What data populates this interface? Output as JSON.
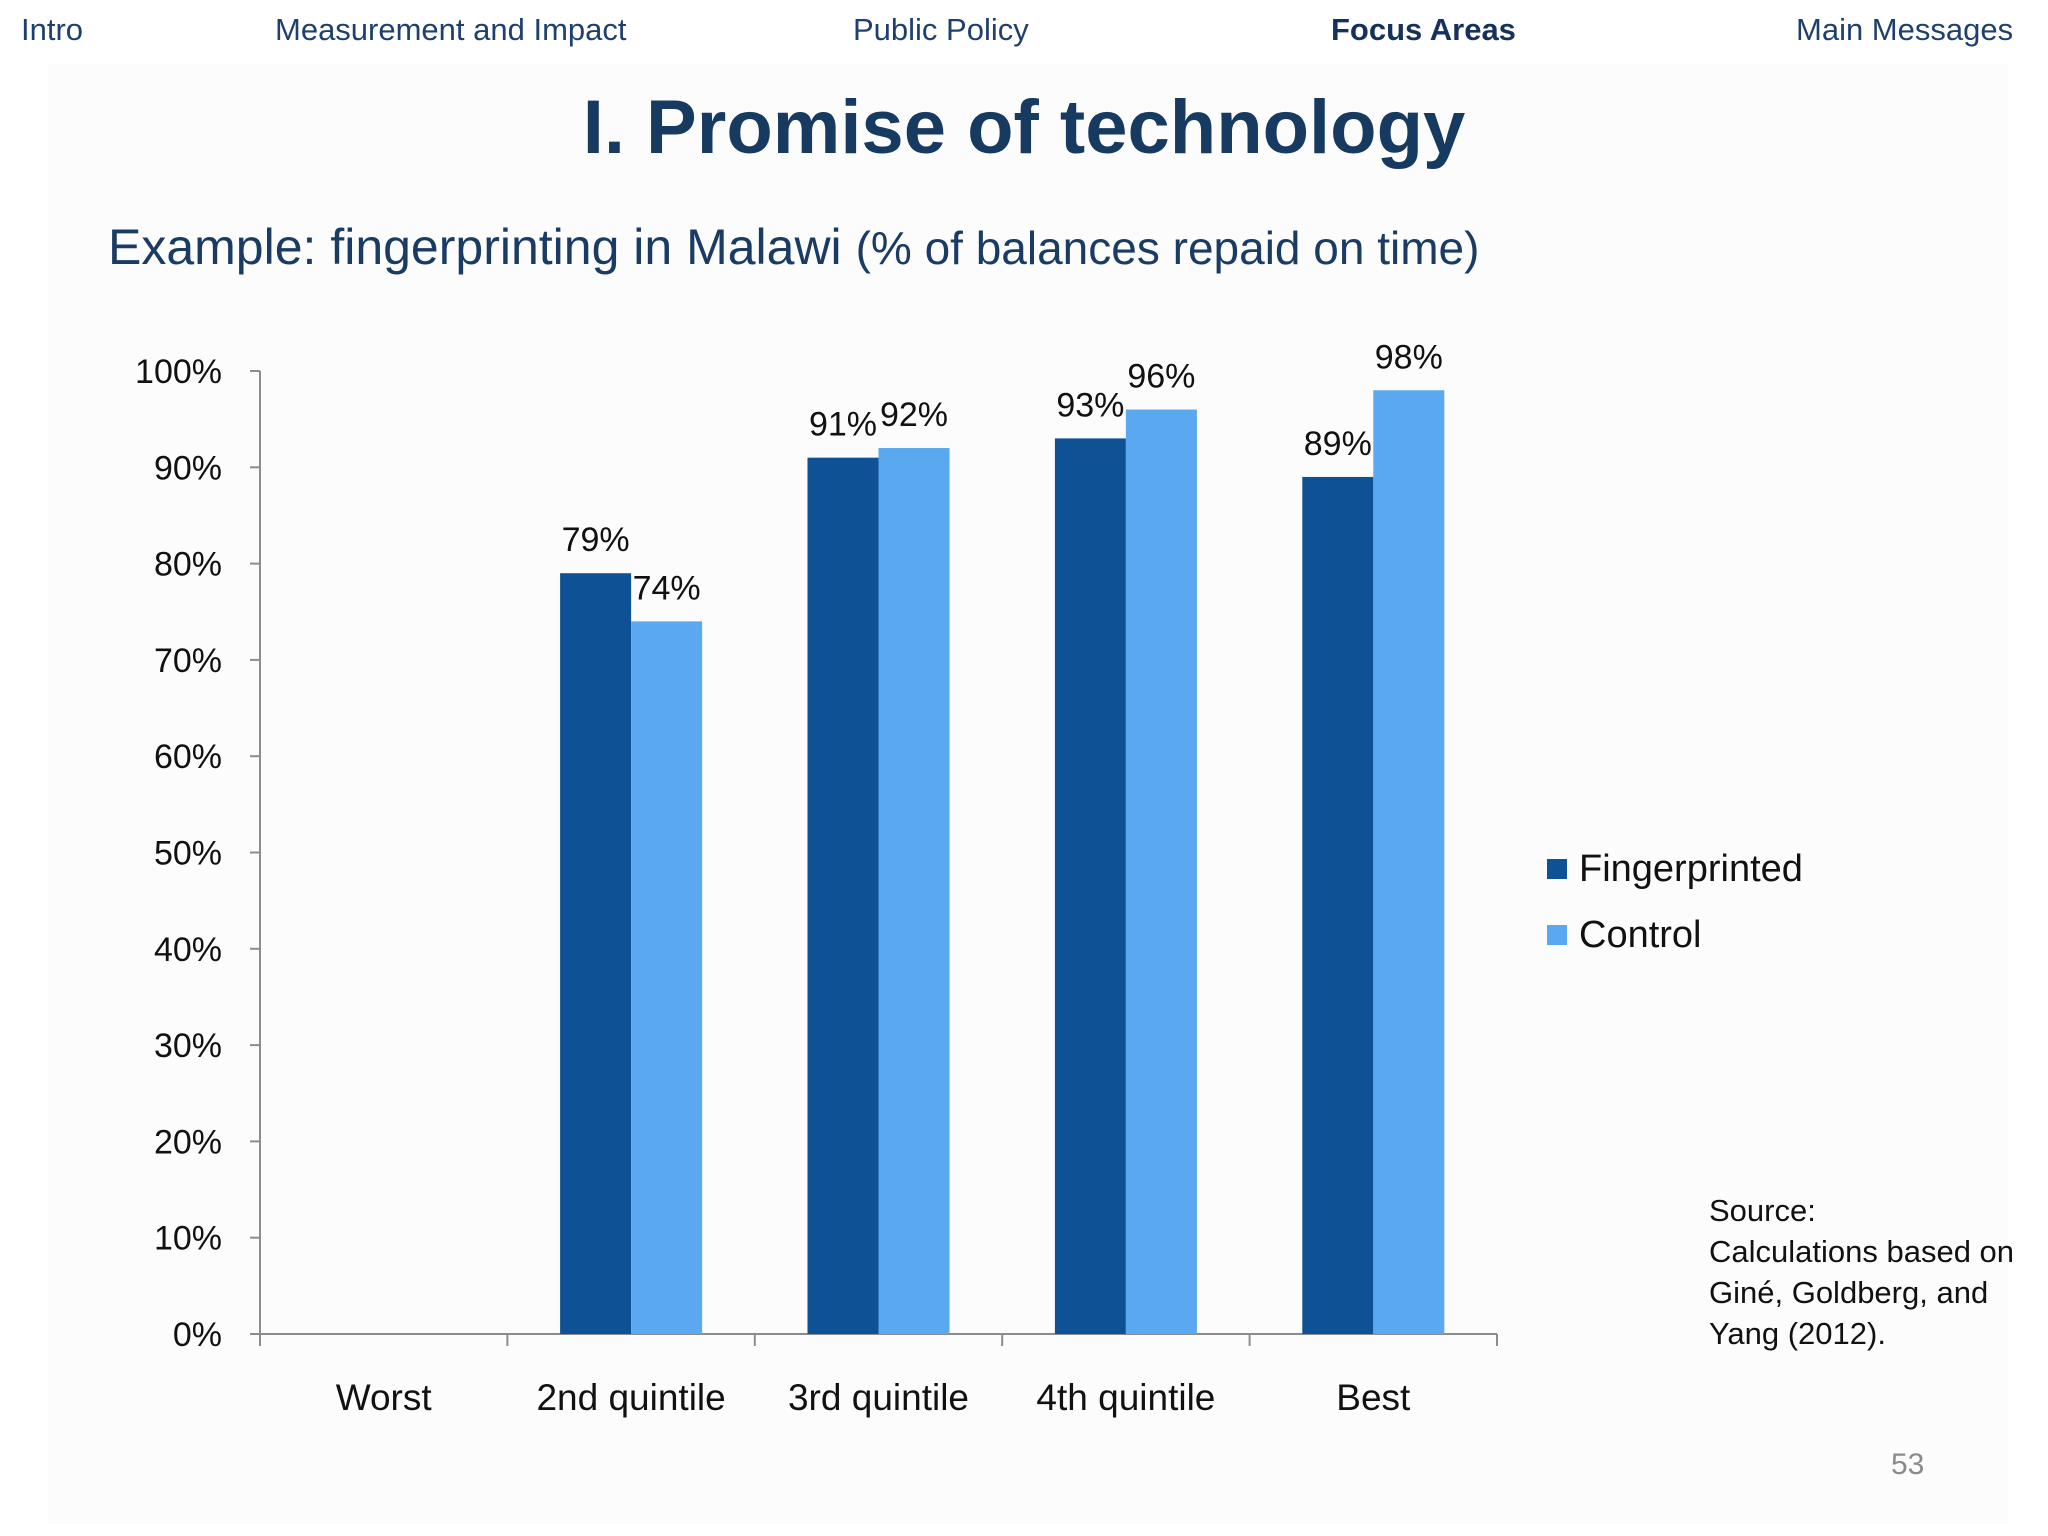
{
  "nav": {
    "items": [
      {
        "label": "Intro",
        "active": false
      },
      {
        "label": "Measurement and Impact",
        "active": false
      },
      {
        "label": "Public Policy",
        "active": false
      },
      {
        "label": "Focus Areas",
        "active": true
      },
      {
        "label": "Main Messages",
        "active": false
      }
    ]
  },
  "slide": {
    "title": "I. Promise of technology",
    "subtitle_main": "Example: fingerprinting in Malawi ",
    "subtitle_paren": "(% of balances repaid on time)",
    "source_lines": [
      "Source:",
      "Calculations based on",
      "Giné, Goldberg, and",
      "Yang (2012)."
    ],
    "page_number": "53"
  },
  "colors": {
    "fingerprinted": "#0e5194",
    "control": "#5aa8ef",
    "nav_text": "#1f3f6e",
    "title": "#163a60"
  },
  "chart_data": {
    "type": "bar",
    "title": "",
    "xlabel": "",
    "ylabel": "",
    "categories": [
      "Worst",
      "2nd quintile",
      "3rd quintile",
      "4th quintile",
      "Best"
    ],
    "series": [
      {
        "name": "Fingerprinted",
        "values": [
          null,
          79,
          91,
          93,
          89
        ],
        "labels": [
          "",
          "79%",
          "91%",
          "93%",
          "89%"
        ]
      },
      {
        "name": "Control",
        "values": [
          null,
          74,
          92,
          96,
          98
        ],
        "labels": [
          "",
          "74%",
          "92%",
          "96%",
          "98%"
        ]
      }
    ],
    "ylim": [
      0,
      100
    ],
    "yticks": [
      "0%",
      "10%",
      "20%",
      "30%",
      "40%",
      "50%",
      "60%",
      "70%",
      "80%",
      "90%",
      "100%"
    ],
    "legend_position": "right",
    "grid": false
  }
}
